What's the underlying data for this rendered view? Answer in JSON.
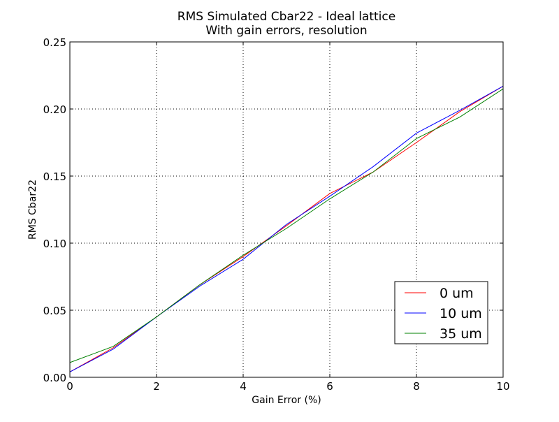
{
  "chart_data": {
    "type": "line",
    "title": "RMS Simulated Cbar22 - Ideal lattice",
    "subtitle": "With gain errors, resolution",
    "xlabel": "Gain Error (%)",
    "ylabel": "RMS Cbar22",
    "xlim": [
      0,
      10
    ],
    "ylim": [
      0,
      0.25
    ],
    "xticks": [
      0,
      2,
      4,
      6,
      8,
      10
    ],
    "xtick_labels": [
      "0",
      "2",
      "4",
      "6",
      "8",
      "10"
    ],
    "yticks": [
      0,
      0.05,
      0.1,
      0.15,
      0.2,
      0.25
    ],
    "ytick_labels": [
      "0.00",
      "0.05",
      "0.10",
      "0.15",
      "0.20",
      "0.25"
    ],
    "grid": true,
    "legend_position": "lower-right",
    "x": [
      0,
      1,
      2,
      3,
      4,
      5,
      6,
      7,
      8,
      9,
      10
    ],
    "series": [
      {
        "name": "0 um",
        "color": "#ff0000",
        "values": [
          0.004,
          0.022,
          0.045,
          0.069,
          0.09,
          0.113,
          0.137,
          0.153,
          0.175,
          0.198,
          0.217
        ]
      },
      {
        "name": "10 um",
        "color": "#0000ff",
        "values": [
          0.004,
          0.021,
          0.045,
          0.068,
          0.088,
          0.114,
          0.135,
          0.157,
          0.182,
          0.199,
          0.217
        ]
      },
      {
        "name": "35 um",
        "color": "#008000",
        "values": [
          0.011,
          0.023,
          0.045,
          0.069,
          0.091,
          0.111,
          0.133,
          0.153,
          0.178,
          0.194,
          0.215
        ]
      }
    ]
  }
}
